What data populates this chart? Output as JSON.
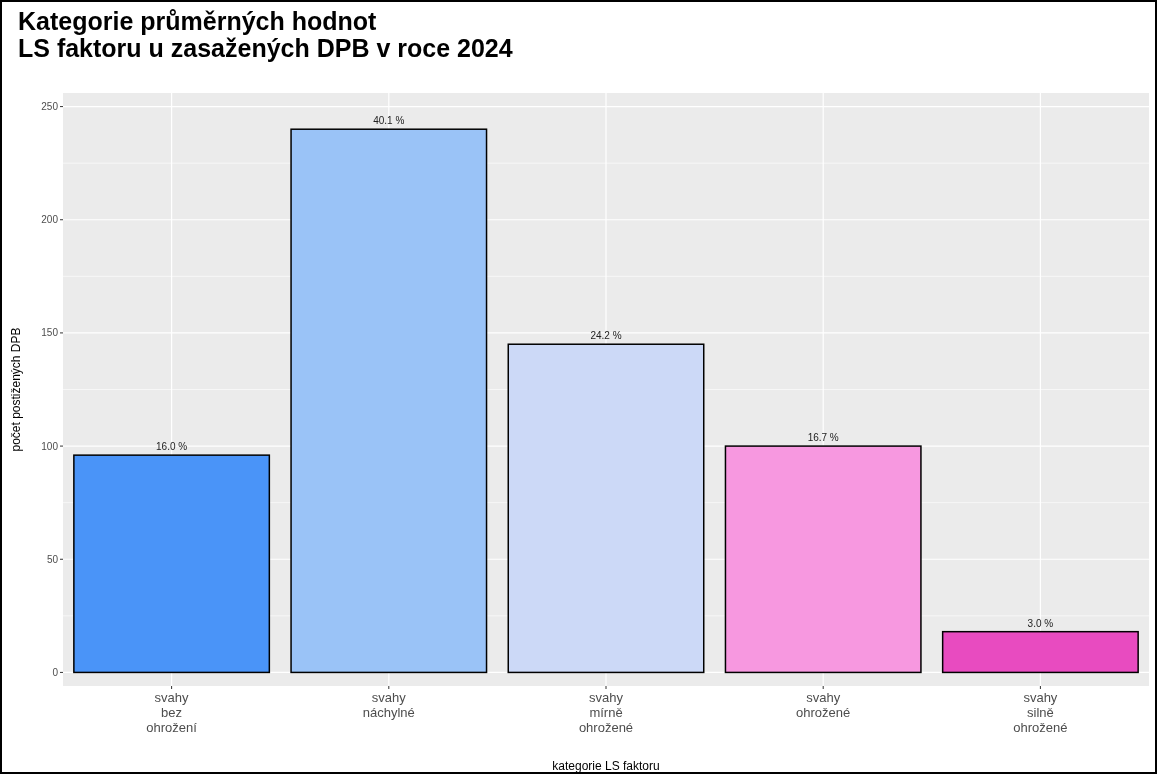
{
  "chart_data": {
    "type": "bar",
    "title": "Kategorie průměrných hodnot\nLS faktoru u zasažených DPB v roce 2024",
    "xlabel": "kategorie LS faktoru",
    "ylabel": "počet postižených DPB",
    "categories": [
      "svahy\nbez\nohrožení",
      "svahy\nnáchylné",
      "svahy\nmírně\nohrožené",
      "svahy\nohrožené",
      "svahy\nsilně\nohrožené"
    ],
    "values": [
      96,
      240,
      145,
      100,
      18
    ],
    "colors": [
      "#4a94f8",
      "#9ac3f7",
      "#ccd9f7",
      "#f798e0",
      "#e84bc0"
    ],
    "annotations": [
      {
        "text": "16.0 %",
        "x": "svahy\nbez\nohrožení",
        "y": 96
      },
      {
        "text": "40.1 %",
        "x": "svahy\nnáchylné",
        "y": 240
      },
      {
        "text": "24.2 %",
        "x": "svahy\nmírně\nohrožené",
        "y": 145
      },
      {
        "text": "16.7 %",
        "x": "svahy\nohrožené",
        "y": 100
      },
      {
        "text": "3.0 %",
        "x": "svahy\nsilně\nohrožené",
        "y": 18
      }
    ],
    "ylim": [
      -6,
      256
    ],
    "yticks": [
      0,
      50,
      100,
      150,
      200,
      250
    ],
    "grid": true
  }
}
